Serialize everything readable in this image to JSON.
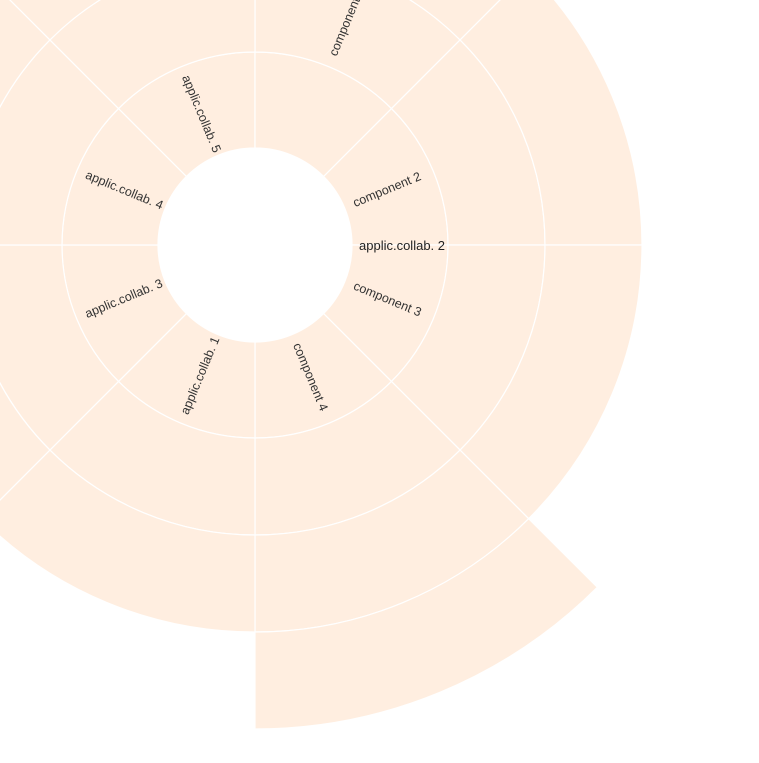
{
  "colors": {
    "segment_fill": "#FFEEE0",
    "segment_stroke": "#ffffff",
    "label_color": "#333333"
  },
  "center": {
    "label": "applic.collab. 2"
  },
  "chart_data": {
    "type": "sunburst",
    "root": "applic.collab. 2",
    "rings": [
      {
        "level": 1,
        "segments": [
          {
            "label": "component 2",
            "start_deg": 45,
            "end_deg": 90
          },
          {
            "label": "component 3",
            "start_deg": 90,
            "end_deg": 135
          },
          {
            "label": "component 4",
            "start_deg": 135,
            "end_deg": 180
          },
          {
            "label": "applic.collab. 1",
            "start_deg": 180,
            "end_deg": 225
          },
          {
            "label": "applic.collab. 3",
            "start_deg": 225,
            "end_deg": 270
          },
          {
            "label": "applic.collab. 4",
            "start_deg": 270,
            "end_deg": 315
          },
          {
            "label": "applic.collab. 5",
            "start_deg": 315,
            "end_deg": 360
          },
          {
            "label": "",
            "start_deg": 0,
            "end_deg": 45
          }
        ]
      },
      {
        "level": 2,
        "segments": [
          {
            "label": "component",
            "start_deg": 0,
            "end_deg": 45
          },
          {
            "label": "",
            "start_deg": 45,
            "end_deg": 90
          },
          {
            "label": "",
            "start_deg": 90,
            "end_deg": 135
          },
          {
            "label": "",
            "start_deg": 135,
            "end_deg": 180
          },
          {
            "label": "",
            "start_deg": 180,
            "end_deg": 225
          },
          {
            "label": "",
            "start_deg": 225,
            "end_deg": 270
          },
          {
            "label": "",
            "start_deg": 270,
            "end_deg": 315
          },
          {
            "label": "",
            "start_deg": 315,
            "end_deg": 360
          }
        ]
      },
      {
        "level": 3,
        "segments": [
          {
            "label": "",
            "start_deg": 0,
            "end_deg": 45
          },
          {
            "label": "",
            "start_deg": 45,
            "end_deg": 90
          },
          {
            "label": "",
            "start_deg": 90,
            "end_deg": 135
          },
          {
            "label": "",
            "start_deg": 135,
            "end_deg": 180
          },
          {
            "label": "",
            "start_deg": 180,
            "end_deg": 225
          },
          {
            "label": "",
            "start_deg": 225,
            "end_deg": 270
          },
          {
            "label": "",
            "start_deg": 270,
            "end_deg": 315
          },
          {
            "label": "",
            "start_deg": 315,
            "end_deg": 360
          }
        ]
      },
      {
        "level": 4,
        "segments": [
          {
            "label": "",
            "start_deg": 135,
            "end_deg": 180
          }
        ]
      }
    ]
  }
}
